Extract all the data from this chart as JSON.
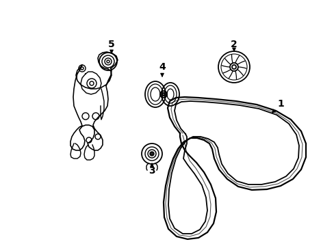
{
  "background_color": "#ffffff",
  "line_color": "#000000",
  "line_width": 1.3,
  "label_fontsize": 10,
  "figsize": [
    4.89,
    3.6
  ],
  "dpi": 100
}
